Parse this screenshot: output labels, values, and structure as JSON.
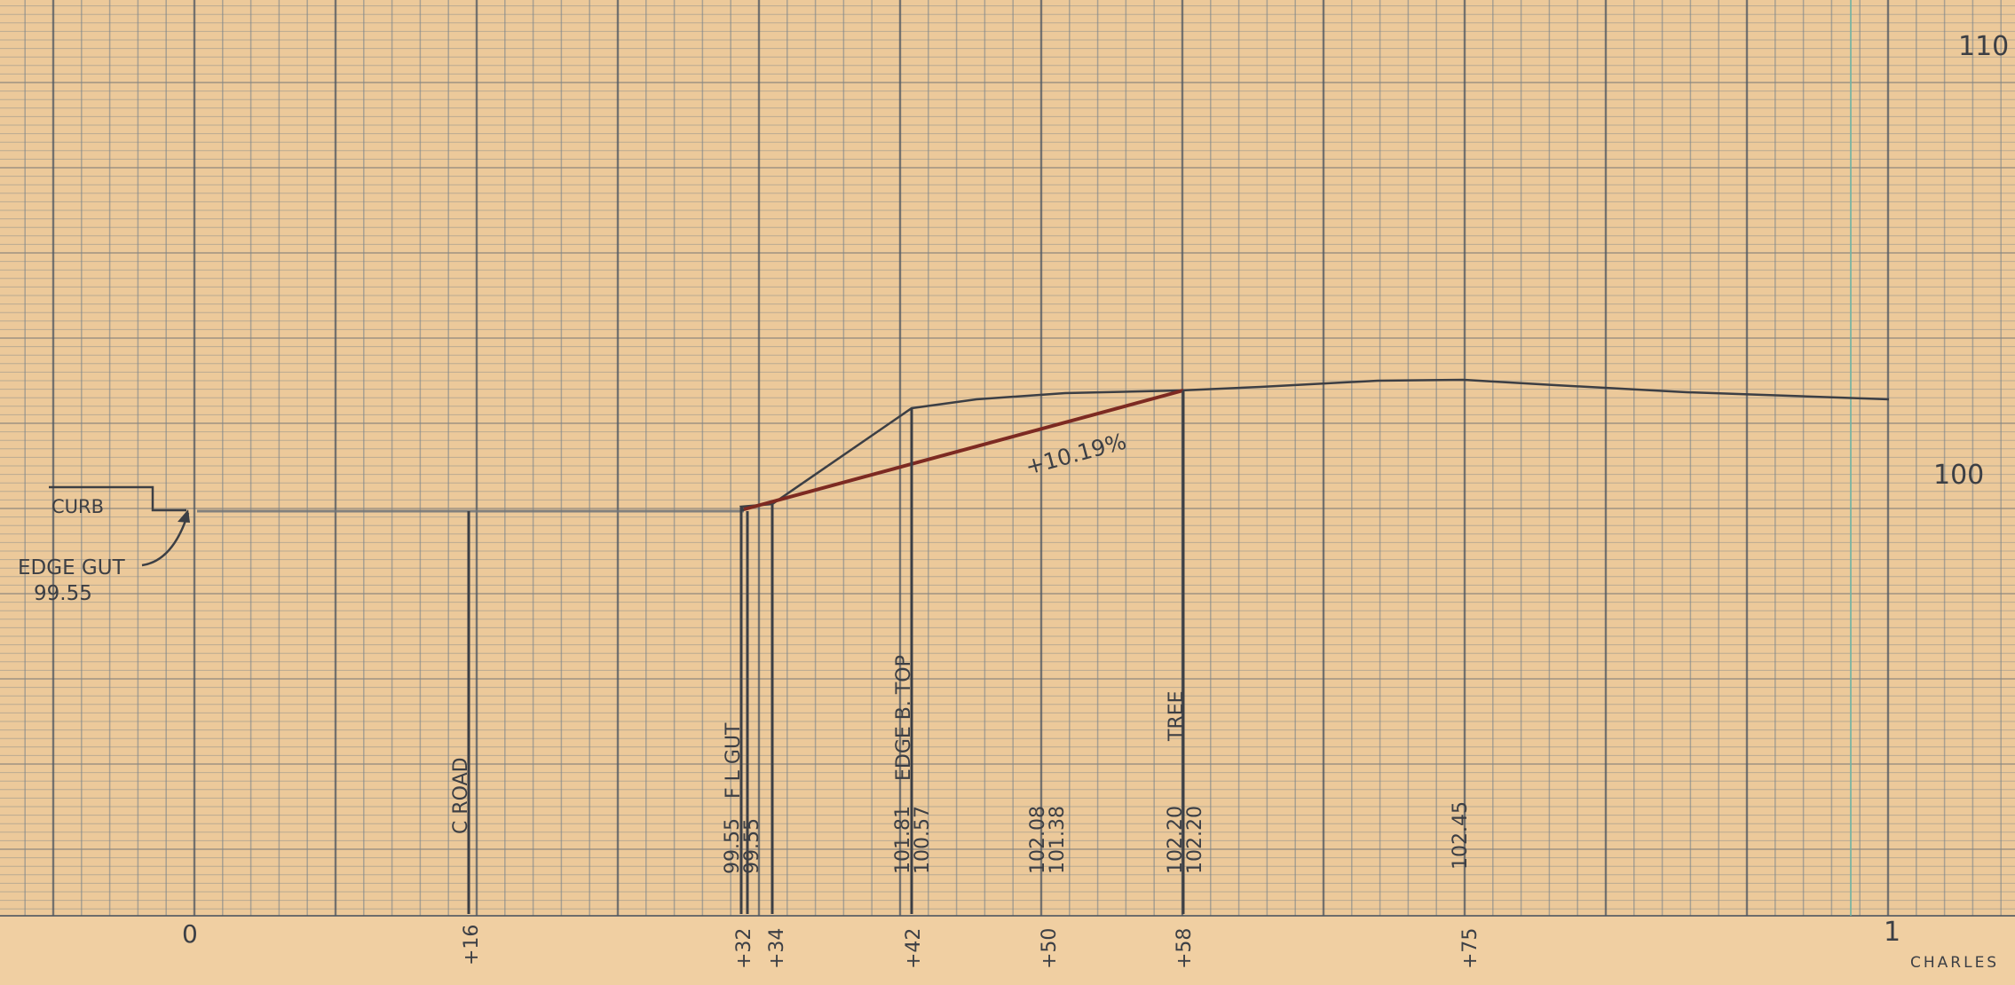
{
  "elevation_labels": {
    "top": "110",
    "middle": "100"
  },
  "annotations": {
    "curb": "CURB",
    "edge_gutter": "EDGE GUT",
    "edge_gutter_elev": "99.55",
    "grade": "+10.19%",
    "footer": "CHARLES"
  },
  "station_labels": [
    "0",
    "+16",
    "+32",
    "+34",
    "+42",
    "+50",
    "+58",
    "+75",
    "1"
  ],
  "vertical_notes": [
    {
      "name": "road",
      "text": "C ROAD"
    },
    {
      "name": "gutter",
      "text": "F L GUT"
    },
    {
      "name": "edge-top",
      "text": "EDGE B. TOP"
    },
    {
      "name": "tree",
      "text": "TREE"
    }
  ],
  "elevation_pairs": [
    {
      "station": "+32",
      "upper": "99.55",
      "lower": "99.55"
    },
    {
      "station": "+42",
      "upper": "101.81",
      "lower": "100.57"
    },
    {
      "station": "+50",
      "upper": "102.08",
      "lower": "101.38"
    },
    {
      "station": "+58",
      "upper": "102.20",
      "lower": "102.20"
    },
    {
      "station": "+75",
      "upper": "102.45",
      "lower": ""
    }
  ],
  "colors": {
    "paper": "#ecc99a",
    "grid_minor": "#7d858a",
    "grid_major": "#4e5660",
    "pencil": "#3c3f45",
    "grade_line": "#7d2a22",
    "accent_line": "#6fb3a3"
  }
}
